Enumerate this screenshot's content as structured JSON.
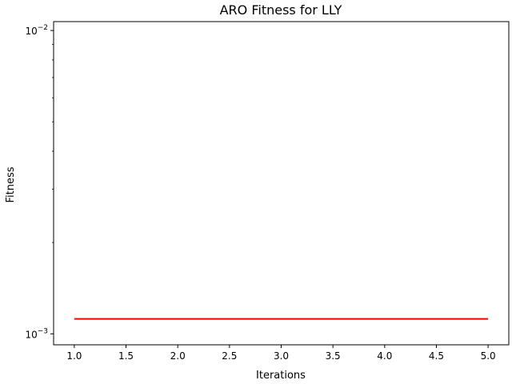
{
  "chart_data": {
    "type": "line",
    "title": "ARO Fitness for LLY",
    "xlabel": "Iterations",
    "ylabel": "Fitness",
    "yscale": "log",
    "xlim": [
      0.8,
      5.2
    ],
    "ylim": [
      0.00092,
      0.0107
    ],
    "x_ticks": [
      1.0,
      1.5,
      2.0,
      2.5,
      3.0,
      3.5,
      4.0,
      4.5,
      5.0
    ],
    "x_tick_labels": [
      "1.0",
      "1.5",
      "2.0",
      "2.5",
      "3.0",
      "3.5",
      "4.0",
      "4.5",
      "5.0"
    ],
    "y_major_ticks": [
      {
        "value": 0.001,
        "base": "10",
        "exponent": "−3"
      },
      {
        "value": 0.01,
        "base": "10",
        "exponent": "−2"
      }
    ],
    "grid": false,
    "legend": "none",
    "series": [
      {
        "color": "#ff0000",
        "x": [
          1,
          2,
          3,
          4,
          5
        ],
        "y": [
          0.00112,
          0.00112,
          0.00112,
          0.00112,
          0.00112
        ]
      }
    ]
  }
}
